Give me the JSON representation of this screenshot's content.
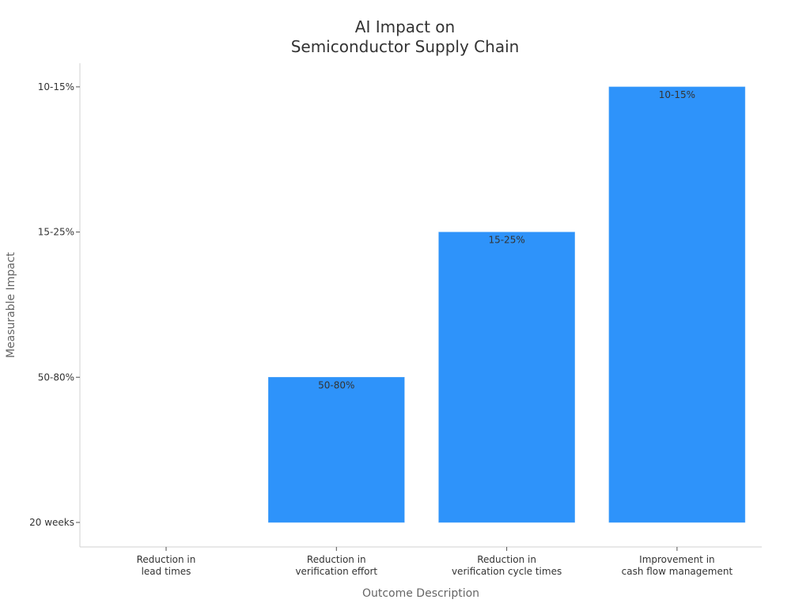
{
  "chart_data": {
    "type": "bar",
    "title": [
      "AI Impact on",
      "Semiconductor Supply Chain"
    ],
    "xlabel": "Outcome Description",
    "ylabel": "Measurable Impact",
    "categories": [
      [
        "Reduction in",
        "lead times"
      ],
      [
        "Reduction in",
        "verification effort"
      ],
      [
        "Reduction in",
        "verification cycle times"
      ],
      [
        "Improvement in",
        "cash flow management"
      ]
    ],
    "y_categories": [
      "20 weeks",
      "50-80%",
      "15-25%",
      "10-15%"
    ],
    "values": [
      "20 weeks",
      "50-80%",
      "15-25%",
      "10-15%"
    ],
    "data_labels": [
      "",
      "50-80%",
      "15-25%",
      "10-15%"
    ],
    "bar_color": "#2e93fa",
    "grid": false,
    "legend": "none"
  }
}
